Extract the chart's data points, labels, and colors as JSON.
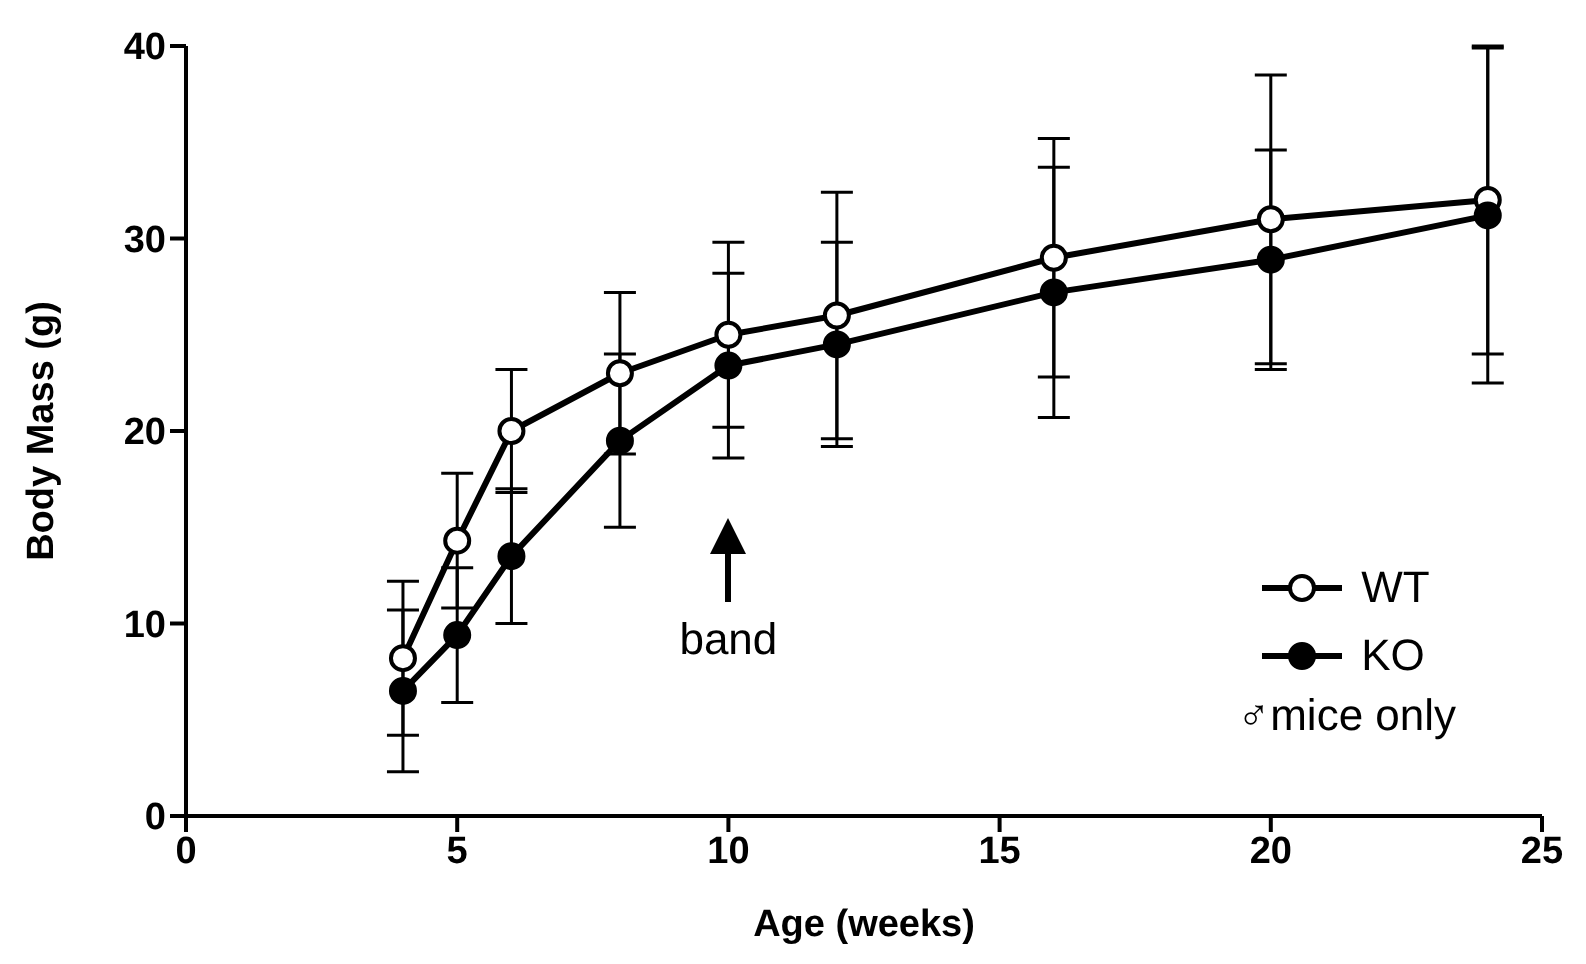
{
  "chart_data": {
    "type": "line",
    "xlabel": "Age (weeks)",
    "ylabel": "Body Mass (g)",
    "x": [
      4,
      5,
      6,
      8,
      10,
      12,
      16,
      20,
      24
    ],
    "series": [
      {
        "name": "WT",
        "color": "#000000",
        "marker": "circle",
        "values": [
          8.2,
          14.3,
          20,
          23,
          25,
          26,
          29,
          31,
          32
        ],
        "errors": [
          4,
          3.5,
          3.2,
          4.2,
          4.8,
          6.4,
          6.2,
          7.5,
          8
        ]
      },
      {
        "name": "KO",
        "color": "#000000",
        "marker": "circle",
        "values": [
          6.5,
          9.4,
          13.5,
          19.5,
          23.4,
          24.5,
          27.2,
          28.9,
          31.2
        ],
        "errors": [
          4.2,
          3.5,
          3.5,
          4.5,
          4.8,
          5.3,
          6.5,
          5.7,
          8.7
        ]
      }
    ],
    "xlim": [
      0,
      25
    ],
    "xticks": [
      0,
      5,
      10,
      15,
      20,
      25
    ],
    "ylim": [
      0,
      40
    ],
    "yticks": [
      0,
      10,
      20,
      30,
      40
    ],
    "grid": false,
    "legend": "bottom right",
    "annotations": [
      "band",
      "♂mice only"
    ]
  }
}
